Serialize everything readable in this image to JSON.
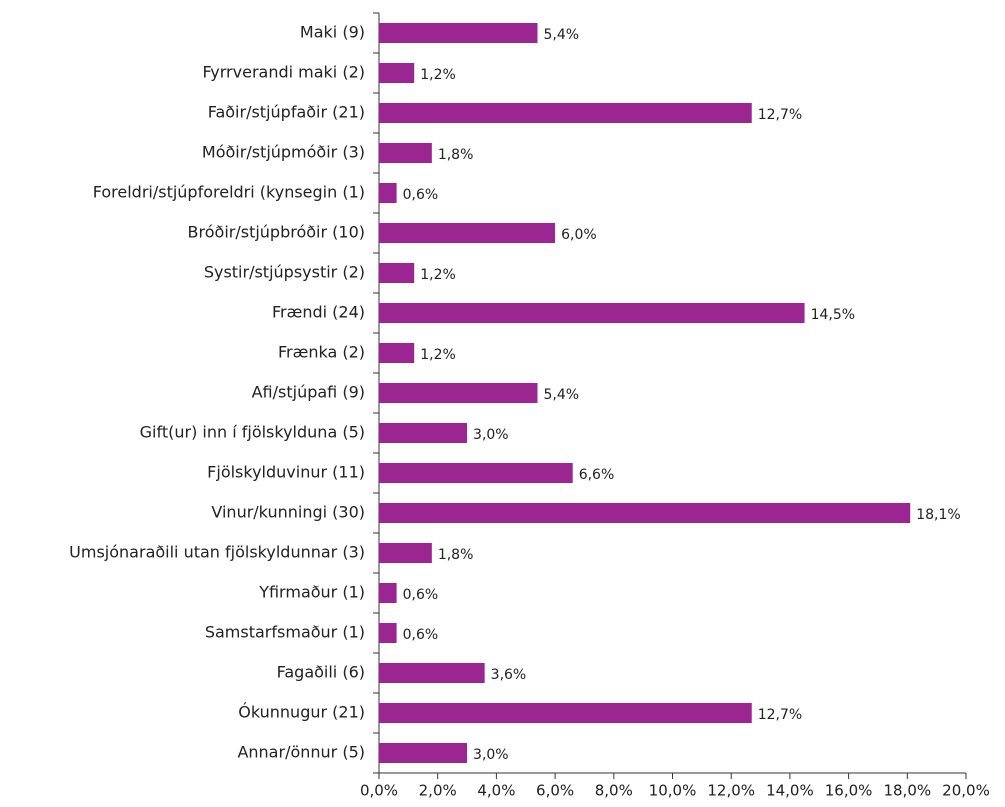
{
  "chart_data": {
    "type": "bar",
    "orientation": "horizontal",
    "categories": [
      "Maki (9)",
      "Fyrrverandi maki (2)",
      "Faðir/stjúpfaðir (21)",
      "Móðir/stjúpmóðir (3)",
      "Foreldri/stjúpforeldri (kynsegin (1)",
      "Bróðir/stjúpbróðir (10)",
      "Systir/stjúpsystir (2)",
      "Frændi (24)",
      "Frænka (2)",
      "Afi/stjúpafi (9)",
      "Gift(ur) inn í fjölskylduna (5)",
      "Fjölskylduvinur (11)",
      "Vinur/kunningi (30)",
      "Umsjónaraðili utan fjölskyldunnar (3)",
      "Yfirmaður (1)",
      "Samstarfsmaður (1)",
      "Fagaðili (6)",
      "Ókunnugur (21)",
      "Annar/önnur (5)"
    ],
    "values": [
      5.4,
      1.2,
      12.7,
      1.8,
      0.6,
      6.0,
      1.2,
      14.5,
      1.2,
      5.4,
      3.0,
      6.6,
      18.1,
      1.8,
      0.6,
      0.6,
      3.6,
      12.7,
      3.0
    ],
    "value_labels": [
      "5,4%",
      "1,2%",
      "12,7%",
      "1,8%",
      "0,6%",
      "6,0%",
      "1,2%",
      "14,5%",
      "1,2%",
      "5,4%",
      "3,0%",
      "6,6%",
      "18,1%",
      "1,8%",
      "0,6%",
      "0,6%",
      "3,6%",
      "12,7%",
      "3,0%"
    ],
    "color": "#9b2692",
    "xlim": [
      0,
      20
    ],
    "xticks": [
      {
        "value": 0,
        "label": "0,0%"
      },
      {
        "value": 2,
        "label": "2,0%"
      },
      {
        "value": 4,
        "label": "4,0%"
      },
      {
        "value": 6,
        "label": "6,0%"
      },
      {
        "value": 8,
        "label": "8,0%"
      },
      {
        "value": 10,
        "label": "10,0%"
      },
      {
        "value": 12,
        "label": "12,0%"
      },
      {
        "value": 14,
        "label": "14,0%"
      },
      {
        "value": 16,
        "label": "16,0%"
      },
      {
        "value": 18,
        "label": "18,0%"
      },
      {
        "value": 20,
        "label": "20,0%"
      }
    ],
    "grid": false
  }
}
